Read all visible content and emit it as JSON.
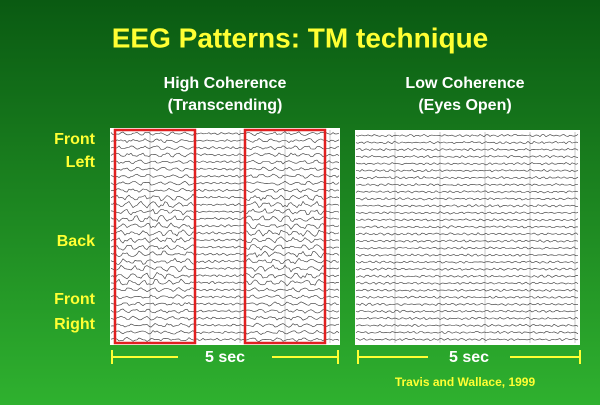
{
  "title": "EEG Patterns: TM technique",
  "panels": [
    {
      "title": "High Coherence",
      "subtitle": "(Transcending)",
      "scale": "5 sec"
    },
    {
      "title": "Low Coherence",
      "subtitle": "(Eyes Open)",
      "scale": "5 sec"
    }
  ],
  "side_labels": [
    "Front",
    "Left",
    "Back",
    "Front",
    "Right"
  ],
  "citation": "Travis and Wallace, 1999"
}
